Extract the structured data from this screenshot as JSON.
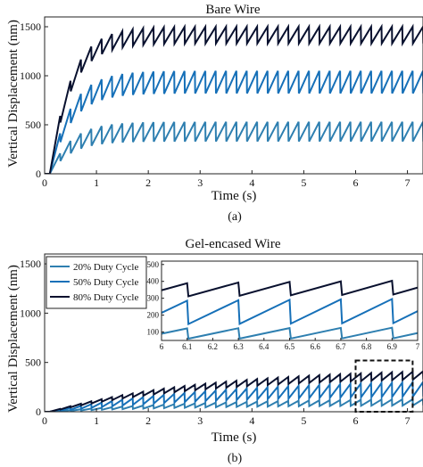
{
  "colors": {
    "duty_20": "#2e7fb0",
    "duty_50": "#1670b8",
    "duty_80": "#08102e",
    "axis": "#222222",
    "zoom_box": "#111111"
  },
  "chart_data": [
    {
      "type": "line",
      "panel_label": "(a)",
      "title": "Bare Wire",
      "xlabel": "Time (s)",
      "ylabel": "Vertical Displacement (nm)",
      "xlim": [
        0,
        7.3
      ],
      "ylim": [
        0,
        1600
      ],
      "xticks": [
        0,
        1,
        2,
        3,
        4,
        5,
        6,
        7
      ],
      "yticks": [
        0,
        500,
        1000,
        1500
      ],
      "grid": false,
      "legend": null,
      "waveform": {
        "start": 0.1,
        "period": 0.2,
        "tau": 0.4,
        "cycles": 36
      },
      "series": [
        {
          "key": "duty_20",
          "upper": 530,
          "lower": 330
        },
        {
          "key": "duty_50",
          "upper": 1050,
          "lower": 820
        },
        {
          "key": "duty_80",
          "upper": 1500,
          "lower": 1330
        }
      ]
    },
    {
      "type": "line",
      "panel_label": "(b)",
      "title": "Gel-encased Wire",
      "xlabel": "Time (s)",
      "ylabel": "Vertical Displacement (nm)",
      "xlim": [
        0,
        7.3
      ],
      "ylim": [
        0,
        1600
      ],
      "xticks": [
        0,
        1,
        2,
        3,
        4,
        5,
        6,
        7
      ],
      "yticks": [
        0,
        500,
        1000,
        1500
      ],
      "grid": false,
      "legend": {
        "position": "top-left",
        "entries": [
          {
            "key": "duty_20",
            "label": "20% Duty Cycle"
          },
          {
            "key": "duty_50",
            "label": "50% Duty Cycle"
          },
          {
            "key": "duty_80",
            "label": "80% Duty Cycle"
          }
        ]
      },
      "waveform": {
        "start": 0.1,
        "period": 0.2,
        "tau": 3.0,
        "cycles": 36
      },
      "series": [
        {
          "key": "duty_20",
          "upper": 140,
          "lower": 70
        },
        {
          "key": "duty_50",
          "upper": 330,
          "lower": 170
        },
        {
          "key": "duty_80",
          "upper": 450,
          "lower": 360
        }
      ],
      "zoom_region": {
        "x": [
          6,
          7.1
        ],
        "y": [
          0,
          520
        ]
      },
      "inset": {
        "xlim": [
          6,
          7
        ],
        "ylim": [
          50,
          520
        ],
        "xticks": [
          6,
          6.1,
          6.2,
          6.3,
          6.4,
          6.5,
          6.6,
          6.7,
          6.8,
          6.9,
          7
        ],
        "xtick_labels": [
          "6",
          "6.1",
          "6.2",
          "6.3",
          "6.4",
          "6.5",
          "6.6",
          "6.7",
          "6.8",
          "6.9",
          "7"
        ],
        "yticks": [
          100,
          200,
          300,
          400,
          500
        ],
        "series": [
          {
            "key": "duty_20",
            "upper": 140,
            "lower": 70
          },
          {
            "key": "duty_50",
            "upper": 330,
            "lower": 170
          },
          {
            "key": "duty_80",
            "upper": 450,
            "lower": 360
          }
        ]
      }
    }
  ]
}
